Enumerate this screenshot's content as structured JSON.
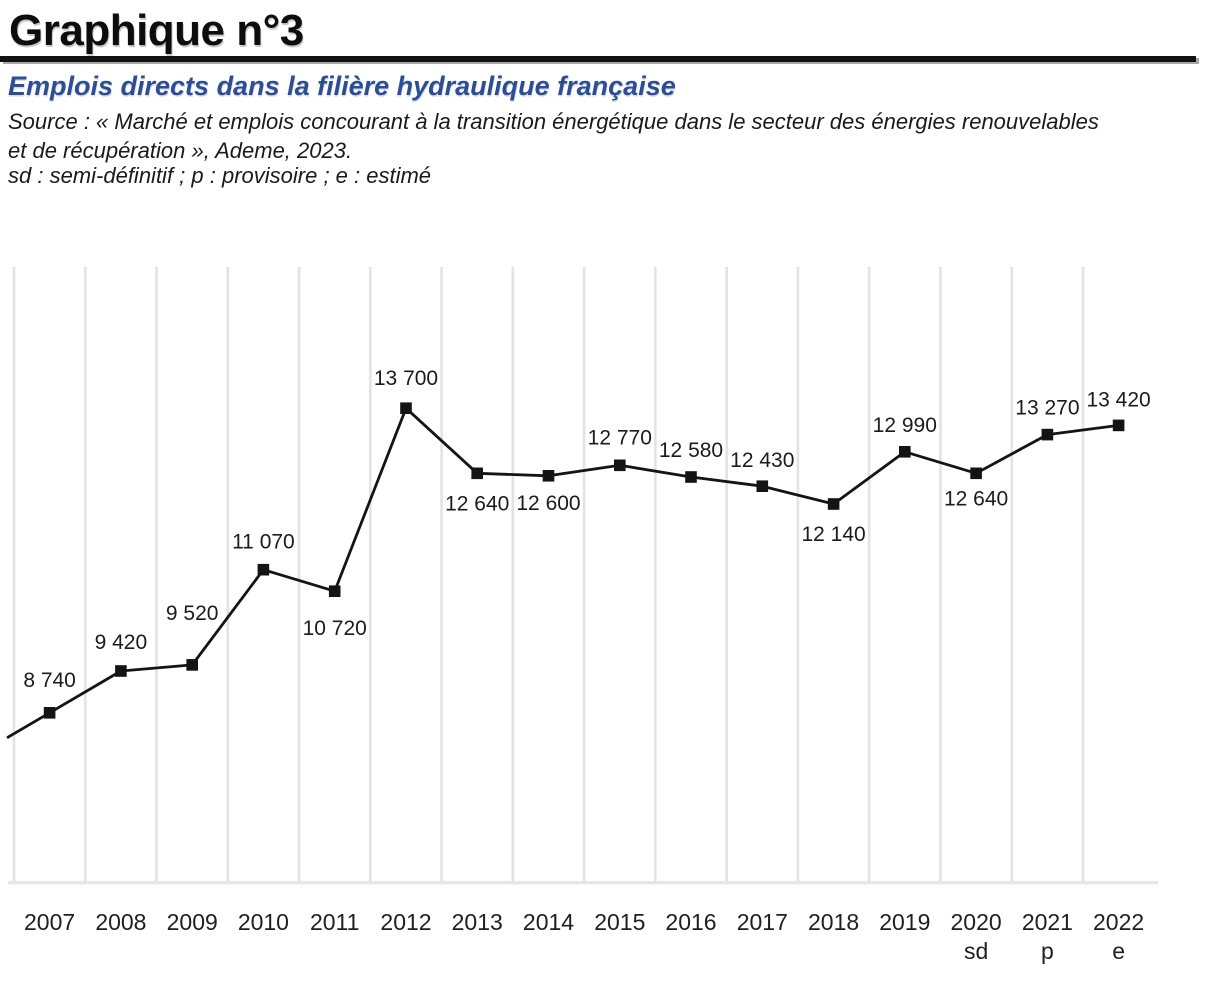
{
  "page": {
    "title": "Graphique n°3",
    "subtitle": "Emplois directs dans la filière hydraulique française",
    "source_line1": "Source : « Marché et emplois concourant à la transition énergétique dans le secteur des énergies renouvelables",
    "source_line2": "et de récupération », Ademe, 2023.",
    "abbreviation_note": "sd : semi-définitif ; p : provisoire ; e : estimé"
  },
  "colors": {
    "subtitle_blue": "#2c4e97",
    "series_line": "#141414",
    "gridline": "#e3e3e3",
    "axis": "#e6e6e6",
    "text": "#1b1b1b"
  },
  "chart_data": {
    "type": "line",
    "title": "Emplois directs dans la filière hydraulique française",
    "xlabel": "",
    "ylabel": "Emplois directs",
    "categories": [
      "2007",
      "2008",
      "2009",
      "2010",
      "2011",
      "2012",
      "2013",
      "2014",
      "2015",
      "2016",
      "2017",
      "2018",
      "2019",
      "2020",
      "2021",
      "2022"
    ],
    "category_suffixes": [
      "",
      "",
      "",
      "",
      "",
      "",
      "",
      "",
      "",
      "",
      "",
      "",
      "",
      "sd",
      "p",
      "e"
    ],
    "values": [
      8740,
      9420,
      9520,
      11070,
      10720,
      13700,
      12640,
      12600,
      12770,
      12580,
      12430,
      12140,
      12990,
      12640,
      13270,
      13420
    ],
    "value_labels": [
      "8 740",
      "9 420",
      "9 520",
      "11 070",
      "10 720",
      "13 700",
      "12 640",
      "12 600",
      "12 770",
      "12 580",
      "12 430",
      "12 140",
      "12 990",
      "12 640",
      "13 270",
      "13 420"
    ],
    "label_side": [
      "above",
      "above",
      "above",
      "above",
      "below",
      "above",
      "below",
      "below",
      "above",
      "above",
      "above",
      "below",
      "above",
      "below",
      "above",
      "above"
    ],
    "label_dy": [
      -26,
      -22,
      -45,
      -21,
      44,
      -23,
      37,
      34,
      -21,
      -20,
      -19,
      37,
      -20,
      32,
      -20,
      -19
    ],
    "ylim": [
      6000,
      16000
    ],
    "grid": "vertical-only",
    "legend": "none",
    "marker": "filled-square",
    "line_enters_from_left_edge": true
  }
}
